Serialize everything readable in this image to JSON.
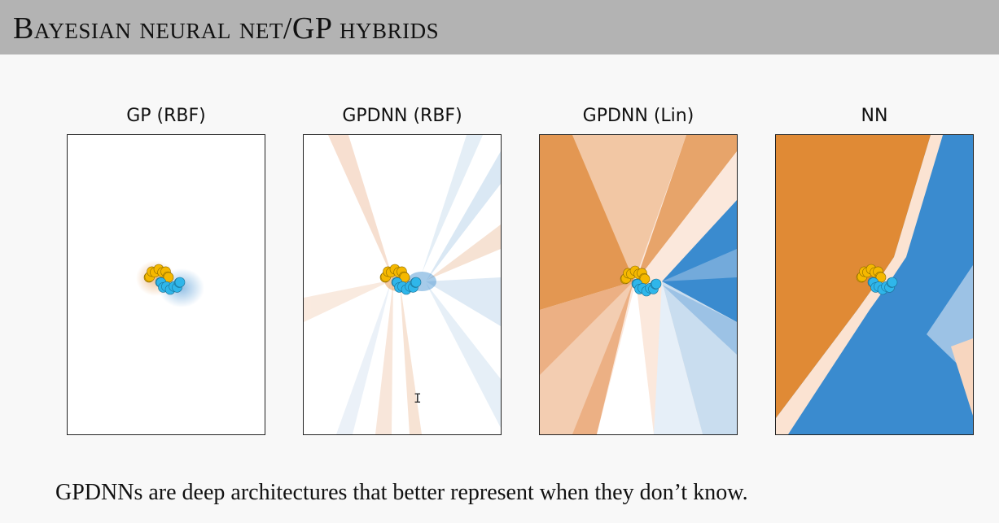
{
  "slide": {
    "title": "Bayesian neural net/GP hybrids",
    "caption": "GPDNNs are deep architectures that better represent when they don’t know."
  },
  "panels": [
    {
      "title": "GP (RBF)"
    },
    {
      "title": "GPDNN (RBF)"
    },
    {
      "title": "GPDNN (Lin)"
    },
    {
      "title": "NN"
    }
  ],
  "colors": {
    "class_orange": "#e08a35",
    "class_blue": "#3a8bcf",
    "points_yellow": "#f5b800",
    "points_cyan": "#2fb6ea"
  },
  "pointer": "cursor-text-ibeam",
  "cursor_glyph": "I"
}
